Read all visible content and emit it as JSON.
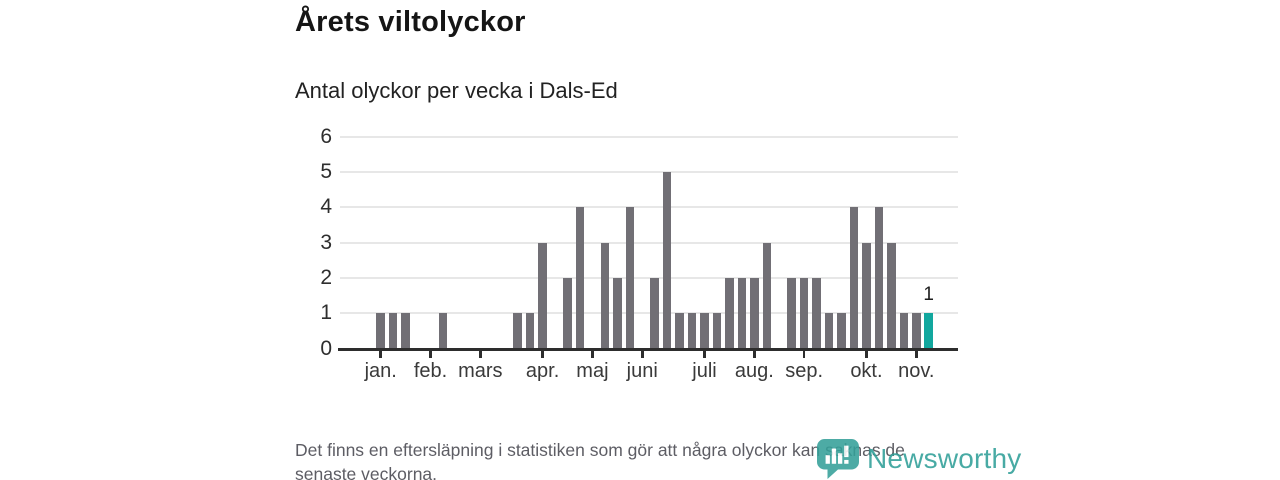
{
  "header": {
    "title": "Årets viltolyckor",
    "subtitle": "Antal olyckor per vecka i Dals-Ed"
  },
  "chart_data": {
    "type": "bar",
    "title": "Årets viltolyckor",
    "subtitle": "Antal olyckor per vecka i Dals-Ed",
    "x_unit": "vecka (week), jan–nov",
    "values": [
      1,
      1,
      1,
      0,
      0,
      1,
      0,
      0,
      0,
      0,
      0,
      1,
      1,
      3,
      0,
      2,
      4,
      0,
      3,
      2,
      4,
      0,
      2,
      5,
      1,
      1,
      1,
      1,
      2,
      2,
      2,
      3,
      0,
      2,
      2,
      2,
      1,
      1,
      4,
      3,
      4,
      3,
      1,
      1,
      1
    ],
    "ylim": [
      0,
      6
    ],
    "y_ticks": [
      0,
      1,
      2,
      3,
      4,
      5,
      6
    ],
    "x_tick_labels": [
      "jan.",
      "feb.",
      "mars",
      "apr.",
      "maj",
      "juni",
      "juli",
      "aug.",
      "sep.",
      "okt.",
      "nov."
    ],
    "x_tick_week_index": [
      0,
      4,
      8,
      13,
      17,
      21,
      26,
      30,
      34,
      39,
      43
    ],
    "grid": true,
    "legend": "none",
    "highlight_last_bar": true,
    "last_bar_label": "1",
    "colors": {
      "bar": "#716f75",
      "highlight": "#12a79e",
      "grid": "#e7e7e7",
      "axis": "#2d2d2d"
    }
  },
  "footer": {
    "disclaimer_lines": [
      "Det finns en eftersläpning i statistiken som gör att några olyckor kan saknas de",
      "senaste veckorna."
    ],
    "brand_name": "Newsworthy"
  }
}
